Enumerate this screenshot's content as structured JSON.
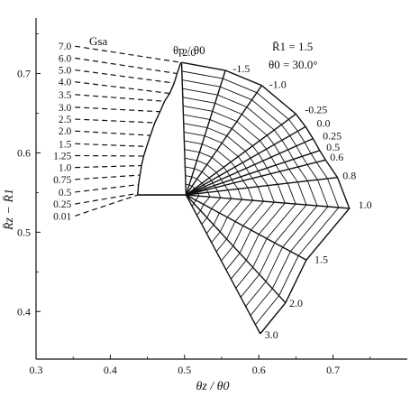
{
  "chart_data": {
    "type": "line",
    "title": "",
    "xlabel": "θz / θ0",
    "ylabel": "R̄z − R̄1",
    "xlim": [
      0.3,
      0.8
    ],
    "ylim": [
      0.34,
      0.77
    ],
    "xticks": [
      "0.3",
      "0.4",
      "0.5",
      "0.6",
      "0.7"
    ],
    "xtick_values": [
      0.3,
      0.4,
      0.5,
      0.6,
      0.7
    ],
    "yticks": [
      "0.4",
      "0.5",
      "0.6",
      "0.7"
    ],
    "ytick_values": [
      0.4,
      0.5,
      0.6,
      0.7
    ],
    "grid": false,
    "annotations": {
      "gsa_header": "Gsa",
      "theta_header": "θp / θ0",
      "r1_note": "R̄1 = 1.5",
      "theta0_note": "θ0 = 30.0°"
    },
    "gsa_series": [
      {
        "label": "7.0",
        "label_at": [
          0.35,
          0.73
        ],
        "dash_to": [
          0.495,
          0.714
        ],
        "nodes": [
          [
            0.495,
            0.714
          ]
        ]
      },
      {
        "label": "6.0",
        "label_at": [
          0.35,
          0.715
        ],
        "dash_to": [
          0.49,
          0.7
        ],
        "nodes": [
          [
            0.49,
            0.7
          ]
        ]
      },
      {
        "label": "5.0",
        "label_at": [
          0.35,
          0.7
        ],
        "dash_to": [
          0.486,
          0.688
        ],
        "nodes": [
          [
            0.486,
            0.688
          ]
        ]
      },
      {
        "label": "4.0",
        "label_at": [
          0.35,
          0.685
        ],
        "dash_to": [
          0.48,
          0.675
        ],
        "nodes": [
          [
            0.48,
            0.675
          ]
        ]
      },
      {
        "label": "3.5",
        "label_at": [
          0.35,
          0.669
        ],
        "dash_to": [
          0.473,
          0.665
        ],
        "nodes": [
          [
            0.473,
            0.665
          ]
        ]
      },
      {
        "label": "3.0",
        "label_at": [
          0.35,
          0.653
        ],
        "dash_to": [
          0.467,
          0.652
        ],
        "nodes": [
          [
            0.467,
            0.652
          ]
        ]
      },
      {
        "label": "2.5",
        "label_at": [
          0.35,
          0.638
        ],
        "dash_to": [
          0.46,
          0.638
        ],
        "nodes": [
          [
            0.46,
            0.638
          ]
        ]
      },
      {
        "label": "2.0",
        "label_at": [
          0.35,
          0.623
        ],
        "dash_to": [
          0.454,
          0.622
        ],
        "nodes": [
          [
            0.454,
            0.622
          ]
        ]
      },
      {
        "label": "1.5",
        "label_at": [
          0.35,
          0.607
        ],
        "dash_to": [
          0.449,
          0.608
        ],
        "nodes": [
          [
            0.449,
            0.608
          ]
        ]
      },
      {
        "label": "1.25",
        "label_at": [
          0.35,
          0.592
        ],
        "dash_to": [
          0.445,
          0.596
        ],
        "nodes": [
          [
            0.445,
            0.596
          ]
        ]
      },
      {
        "label": "1.0",
        "label_at": [
          0.35,
          0.577
        ],
        "dash_to": [
          0.442,
          0.584
        ],
        "nodes": [
          [
            0.442,
            0.584
          ]
        ]
      },
      {
        "label": "0.75",
        "label_at": [
          0.35,
          0.562
        ],
        "dash_to": [
          0.44,
          0.572
        ],
        "nodes": [
          [
            0.44,
            0.572
          ]
        ]
      },
      {
        "label": "0.5",
        "label_at": [
          0.35,
          0.546
        ],
        "dash_to": [
          0.438,
          0.56
        ],
        "nodes": [
          [
            0.438,
            0.56
          ]
        ]
      },
      {
        "label": "0.25",
        "label_at": [
          0.35,
          0.531
        ],
        "dash_to": [
          0.437,
          0.549
        ],
        "nodes": [
          [
            0.437,
            0.549
          ]
        ]
      },
      {
        "label": "0.01",
        "label_at": [
          0.35,
          0.516
        ],
        "dash_to": [
          0.437,
          0.547
        ],
        "nodes": [
          [
            0.437,
            0.547
          ]
        ]
      }
    ],
    "theta_p_lines": [
      {
        "label": "2.0",
        "end": [
          0.496,
          0.714
        ],
        "label_at": [
          0.497,
          0.722
        ]
      },
      {
        "label": "-1.5",
        "end": [
          0.555,
          0.704
        ],
        "label_at": [
          0.565,
          0.702
        ]
      },
      {
        "label": "-1.0",
        "end": [
          0.604,
          0.685
        ],
        "label_at": [
          0.614,
          0.682
        ]
      },
      {
        "label": "-0.25",
        "end": [
          0.65,
          0.649
        ],
        "label_at": [
          0.662,
          0.65
        ]
      },
      {
        "label": "0.0",
        "end": [
          0.663,
          0.633
        ],
        "label_at": [
          0.678,
          0.633
        ]
      },
      {
        "label": "0.25",
        "end": [
          0.673,
          0.618
        ],
        "label_at": [
          0.686,
          0.617
        ]
      },
      {
        "label": "0.5",
        "end": [
          0.682,
          0.603
        ],
        "label_at": [
          0.691,
          0.603
        ]
      },
      {
        "label": "0.6",
        "end": [
          0.69,
          0.591
        ],
        "label_at": [
          0.696,
          0.59
        ]
      },
      {
        "label": "0.8",
        "end": [
          0.706,
          0.569
        ],
        "label_at": [
          0.713,
          0.567
        ]
      },
      {
        "label": "1.0",
        "end": [
          0.722,
          0.53
        ],
        "label_at": [
          0.734,
          0.53
        ]
      },
      {
        "label": "1.5",
        "end": [
          0.664,
          0.465
        ],
        "label_at": [
          0.675,
          0.461
        ]
      },
      {
        "label": "2.0",
        "end": [
          0.636,
          0.411
        ],
        "label_at": [
          0.641,
          0.406
        ]
      },
      {
        "label": "3.0",
        "end": [
          0.602,
          0.372
        ],
        "label_at": [
          0.608,
          0.366
        ]
      }
    ],
    "hub": [
      0.502,
      0.547
    ],
    "left_boundary": [
      [
        0.437,
        0.547
      ],
      [
        0.502,
        0.547
      ]
    ]
  }
}
